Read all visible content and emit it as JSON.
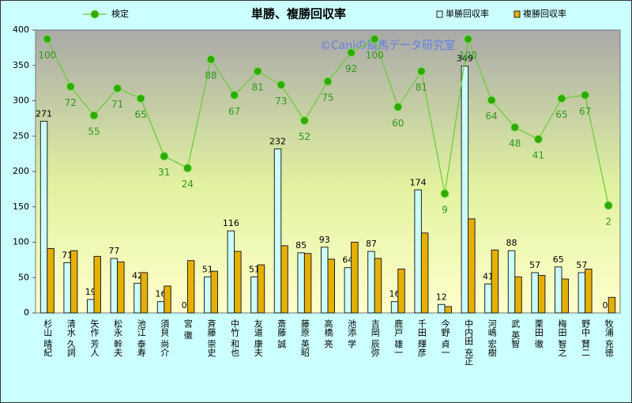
{
  "chart_data": {
    "type": "bar",
    "title": "単勝、複勝回収率",
    "watermark": "©Caniの競馬データ研究室",
    "categories": [
      "杉山 晴紀",
      "清水 久詞",
      "矢作 芳人",
      "松永 幹夫",
      "池江 泰寿",
      "須貝 尚介",
      "宮 徹",
      "斉藤 崇史",
      "中竹 和也",
      "友道 康夫",
      "斎藤 誠",
      "藤原 英昭",
      "高橋 亮",
      "池添 学",
      "吉岡 辰弥",
      "鹿戸 雄一",
      "千田 輝彦",
      "今野 貞一",
      "中内田 充正",
      "河嶋 宏樹",
      "武 英智",
      "栗田 徹",
      "梅田 智之",
      "野中 賢二",
      "牧浦 充徳"
    ],
    "series": [
      {
        "name": "検定",
        "type": "line",
        "axis": "y2",
        "color": "#66cc33",
        "marker_color": "#2fa800",
        "values": [
          100,
          72,
          55,
          71,
          65,
          31,
          24,
          88,
          67,
          81,
          73,
          52,
          75,
          92,
          100,
          60,
          81,
          9,
          100,
          64,
          48,
          41,
          65,
          67,
          2
        ]
      },
      {
        "name": "単勝回収率",
        "type": "bar",
        "color": "#ccffff",
        "values": [
          271,
          71,
          19,
          77,
          42,
          16,
          0,
          51,
          116,
          51,
          232,
          85,
          93,
          64,
          87,
          16,
          174,
          12,
          349,
          41,
          88,
          57,
          65,
          57,
          0
        ]
      },
      {
        "name": "複勝回収率",
        "type": "bar",
        "color": "#e6b000",
        "show_labels": false,
        "values": [
          91,
          88,
          80,
          72,
          57,
          38,
          74,
          59,
          87,
          68,
          95,
          84,
          76,
          100,
          77,
          62,
          113,
          9,
          133,
          89,
          51,
          53,
          48,
          62,
          22
        ]
      }
    ],
    "ylim": [
      0,
      400
    ],
    "yticks": [
      0,
      50,
      100,
      150,
      200,
      250,
      300,
      350,
      400
    ],
    "y2lim": [
      -61.3,
      105.3
    ]
  }
}
